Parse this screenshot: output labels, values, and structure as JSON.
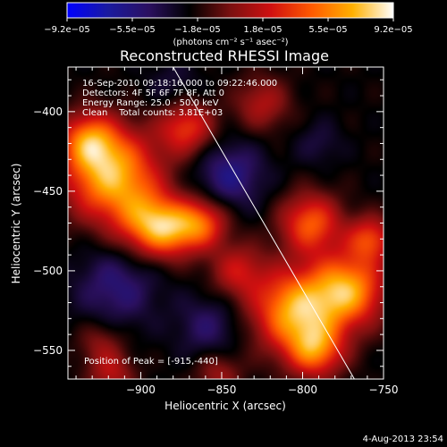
{
  "chart_data": {
    "type": "heatmap",
    "title": "Reconstructed RHESSI Image",
    "xlabel": "Heliocentric X (arcsec)",
    "ylabel": "Heliocentric Y (arcsec)",
    "xlim": [
      -945,
      -750
    ],
    "ylim": [
      -568,
      -372
    ],
    "x_ticks": [
      -900,
      -850,
      -800,
      -750
    ],
    "x_tick_labels": [
      "−900",
      "−850",
      "−800",
      "−750"
    ],
    "y_ticks": [
      -400,
      -450,
      -500,
      -550
    ],
    "y_tick_labels": [
      "−400",
      "−450",
      "−500",
      "−550"
    ],
    "colorbar": {
      "range": [
        -9.2e-05,
        9.2e-05
      ],
      "tick_labels": [
        "−9.2e−05",
        "−5.5e−05",
        "−1.8e−05",
        "1.8e−05",
        "5.5e−05",
        "9.2e−05"
      ],
      "units": "(photons cm⁻² s⁻¹ asec⁻²)",
      "stops": [
        "#0000ff",
        "#1a1aa0",
        "#2b1060",
        "#000000",
        "#7a1010",
        "#d01010",
        "#ff5a00",
        "#ffb000",
        "#ffffff"
      ]
    },
    "annotations": [
      "16-Sep-2010 09:18:16.000 to 09:22:46.000",
      "Detectors: 4F 5F 6F 7F 8F, Att 0",
      "Energy Range: 25.0 - 50.0 keV",
      "Clean    Total counts: 3.81E+03"
    ],
    "peak_label": "Position of Peak = [-915,-440]",
    "peak": [
      -915,
      -440
    ],
    "limb_line": {
      "x1": -880,
      "y1": -372,
      "x2": -768,
      "y2": -568
    },
    "intensity_blobs": [
      {
        "x": -918,
        "y": -440,
        "sigma": 20,
        "value": 9.2e-05
      },
      {
        "x": -932,
        "y": -418,
        "sigma": 12,
        "value": 6e-05
      },
      {
        "x": -895,
        "y": -470,
        "sigma": 14,
        "value": 6.5e-05
      },
      {
        "x": -872,
        "y": -410,
        "sigma": 12,
        "value": 5.5e-05
      },
      {
        "x": -862,
        "y": -470,
        "sigma": 11,
        "value": 6e-05
      },
      {
        "x": -880,
        "y": -475,
        "sigma": 12,
        "value": 5e-05
      },
      {
        "x": -805,
        "y": -525,
        "sigma": 18,
        "value": 8.8e-05
      },
      {
        "x": -772,
        "y": -512,
        "sigma": 16,
        "value": 8.5e-05
      },
      {
        "x": -795,
        "y": -470,
        "sigma": 13,
        "value": 6.5e-05
      },
      {
        "x": -792,
        "y": -550,
        "sigma": 12,
        "value": 6.5e-05
      },
      {
        "x": -758,
        "y": -480,
        "sigma": 10,
        "value": 5.5e-05
      },
      {
        "x": -825,
        "y": -395,
        "sigma": 12,
        "value": 3.5e-05
      },
      {
        "x": -840,
        "y": -500,
        "sigma": 12,
        "value": 4e-05
      },
      {
        "x": -918,
        "y": -565,
        "sigma": 10,
        "value": 3.5e-05
      },
      {
        "x": -852,
        "y": -565,
        "sigma": 10,
        "value": 3e-05
      },
      {
        "x": -925,
        "y": -545,
        "sigma": 10,
        "value": 2.5e-05
      },
      {
        "x": -845,
        "y": -440,
        "sigma": 15,
        "value": -3.5e-05
      },
      {
        "x": -915,
        "y": -510,
        "sigma": 18,
        "value": -3e-05
      },
      {
        "x": -858,
        "y": -535,
        "sigma": 14,
        "value": -2.5e-05
      },
      {
        "x": -790,
        "y": -420,
        "sigma": 10,
        "value": -1.5e-05
      },
      {
        "x": -880,
        "y": -385,
        "sigma": 12,
        "value": -1.5e-05
      }
    ]
  },
  "footer": {
    "date": "4-Aug-2013 23:54"
  }
}
